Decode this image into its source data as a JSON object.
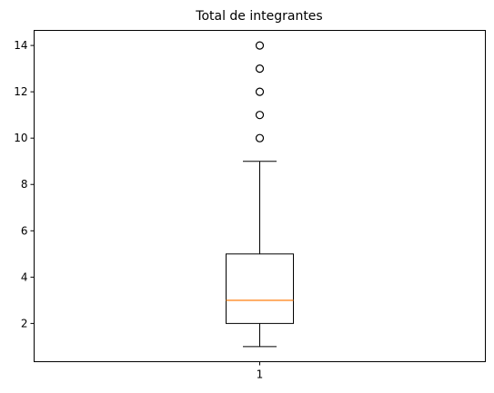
{
  "chart_data": {
    "type": "box",
    "title": "Total de integrantes",
    "xlabel": "",
    "ylabel": "",
    "categories": [
      "1"
    ],
    "ylim": [
      0.35,
      14.65
    ],
    "yticks": [
      2,
      4,
      6,
      8,
      10,
      12,
      14
    ],
    "grid": false,
    "boxes": [
      {
        "label": "1",
        "whisker_low": 1,
        "q1": 2,
        "median": 3,
        "q3": 5,
        "whisker_high": 9,
        "outliers": [
          10,
          11,
          12,
          13,
          14
        ]
      }
    ],
    "colors": {
      "box": "#000000",
      "median": "#ff7f0e",
      "outlier_edge": "#000000"
    }
  }
}
